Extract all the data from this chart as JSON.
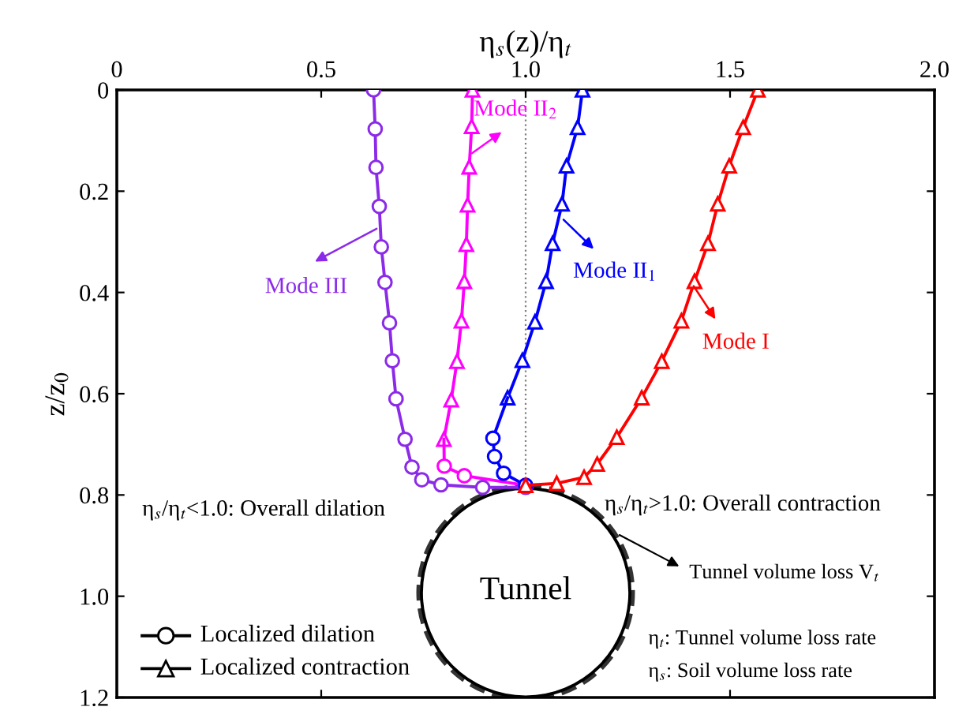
{
  "chart_data": {
    "type": "line",
    "xlabel": "η$_{s}$(z)/η$_{t}$",
    "ylabel": "z/z$_{0}$",
    "xlim": [
      0,
      2
    ],
    "xticks": [
      0,
      0.5,
      {
        "value": 1,
        "label": "1.0"
      },
      1.5,
      {
        "value": 2,
        "label": "2.0"
      }
    ],
    "ylim": [
      1.2,
      0
    ],
    "yticks": [
      0,
      0.2,
      0.4,
      0.6,
      0.8,
      {
        "value": 1,
        "label": "1.0"
      },
      1.2
    ],
    "grid": false,
    "line_style": "solid",
    "series": [
      {
        "color": "#8b2be8",
        "marker": "circle",
        "x": [
          0.628,
          0.632,
          0.634,
          0.642,
          0.647,
          0.656,
          0.667,
          0.674,
          0.683,
          0.705,
          0.722,
          0.746,
          0.793,
          0.895,
          1.0
        ],
        "values": [
          0,
          0.077,
          0.153,
          0.23,
          0.31,
          0.38,
          0.46,
          0.535,
          0.61,
          0.69,
          0.745,
          0.77,
          0.78,
          0.785,
          0.785
        ]
      },
      {
        "color": "#ff00ff",
        "marker": "triangle",
        "x": [
          0.87,
          0.868,
          0.862,
          0.858,
          0.855,
          0.85,
          0.843,
          0.832,
          0.818,
          0.8
        ],
        "values": [
          0,
          0.072,
          0.152,
          0.227,
          0.305,
          0.378,
          0.456,
          0.536,
          0.612,
          0.69
        ]
      },
      {
        "color": "#ff00ff",
        "marker": "circle",
        "x": [
          0.8,
          0.801,
          0.85,
          1.0
        ],
        "values": [
          0.69,
          0.743,
          0.762,
          0.781
        ]
      },
      {
        "color": "#0000ff",
        "marker": "triangle",
        "x": [
          1.139,
          1.127,
          1.1,
          1.089,
          1.066,
          1.05,
          1.023,
          0.992,
          0.956
        ],
        "values": [
          0,
          0.074,
          0.15,
          0.225,
          0.303,
          0.378,
          0.458,
          0.534,
          0.608
        ]
      },
      {
        "color": "#0000ff",
        "marker": "circle",
        "x": [
          0.956,
          0.92,
          0.924,
          0.946,
          1.0
        ],
        "values": [
          0.608,
          0.688,
          0.724,
          0.757,
          0.781
        ]
      },
      {
        "color": "#ff0000",
        "marker": "triangle",
        "x": [
          1.568,
          1.532,
          1.498,
          1.47,
          1.446,
          1.413,
          1.381,
          1.333,
          1.284,
          1.223,
          1.175,
          1.143,
          1.076,
          1.0
        ],
        "values": [
          0,
          0.074,
          0.15,
          0.225,
          0.303,
          0.378,
          0.456,
          0.536,
          0.608,
          0.686,
          0.739,
          0.765,
          0.777,
          0.781
        ]
      }
    ],
    "ref_lines": [
      {
        "axis": "x",
        "value": 1.0,
        "line_style": "dotted",
        "color": "#808080"
      }
    ],
    "annotations": [
      {
        "text": "Mode III",
        "x": 0.645,
        "y": 0.27
      },
      {
        "text": "Mode II$_{2}$",
        "x": 0.86,
        "y": 0.13
      },
      {
        "text": "Mode II$_{1}$",
        "x": 1.085,
        "y": 0.25
      },
      {
        "text": "Mode I",
        "x": 1.405,
        "y": 0.38
      },
      "η$_{s}$/η$_{t}$<1.0: Overall dilation",
      "η$_{s}$/η$_{t}$>1.0: Overall contraction",
      "Tunnel",
      "Tunnel volume loss V$_{t}$",
      "η$_{t}$: Tunnel volume loss rate",
      "η$_{s}$: Soil volume loss rate",
      "Localized dilation",
      "Localized contraction"
    ]
  }
}
